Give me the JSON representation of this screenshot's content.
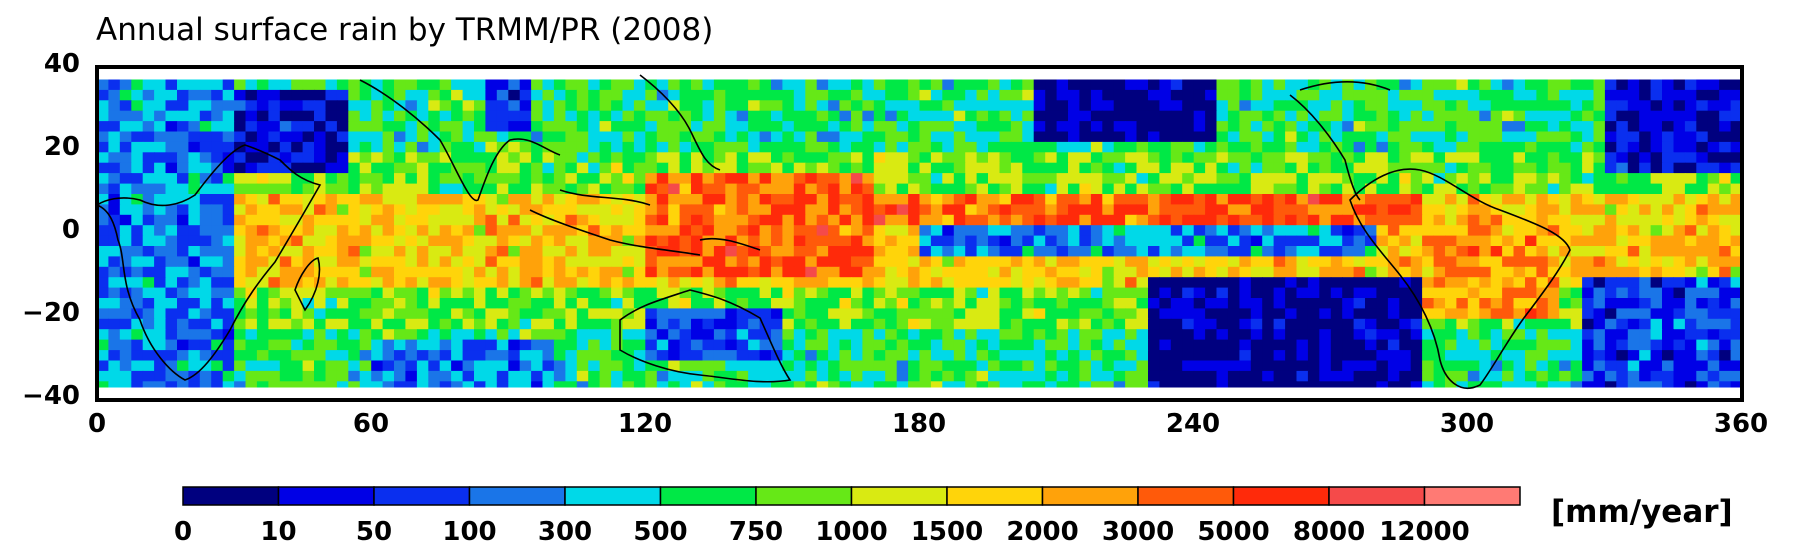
{
  "chart_data": {
    "type": "heatmap",
    "title": "Annual surface rain by TRMM/PR (2008)",
    "x_ticks": [
      "0",
      "60",
      "120",
      "180",
      "240",
      "300",
      "360"
    ],
    "x_range": [
      0,
      360
    ],
    "y_ticks": [
      "40",
      "20",
      "0",
      "−20",
      "−40"
    ],
    "y_range": [
      -40,
      40
    ],
    "data_lat_range": [
      -37,
      37
    ],
    "colorbar": {
      "unit": "[mm/year]",
      "ticks": [
        "0",
        "10",
        "50",
        "100",
        "300",
        "500",
        "750",
        "1000",
        "1500",
        "2000",
        "3000",
        "5000",
        "8000",
        "12000"
      ],
      "colors": [
        "#00007f",
        "#0000e6",
        "#0a2fef",
        "#1a75e8",
        "#00d9e8",
        "#00e846",
        "#66e817",
        "#d9ea12",
        "#ffd40a",
        "#ffa20a",
        "#ff5a0a",
        "#ff2a0a",
        "#f54a4a",
        "#ff7a74"
      ]
    },
    "bands": [
      {
        "lon": [
          0,
          28
        ],
        "lat": [
          37,
          -37
        ],
        "class": 3
      },
      {
        "lon": [
          30,
          55
        ],
        "lat": [
          35,
          15
        ],
        "class": 1
      },
      {
        "lon": [
          85,
          95
        ],
        "lat": [
          37,
          25
        ],
        "class": 1
      },
      {
        "lon": [
          120,
          170
        ],
        "lat": [
          15,
          -10
        ],
        "class": 10
      },
      {
        "lon": [
          150,
          290
        ],
        "lat": [
          10,
          4
        ],
        "class": 10
      },
      {
        "lon": [
          180,
          280
        ],
        "lat": [
          2,
          -5
        ],
        "class": 3
      },
      {
        "lon": [
          230,
          290
        ],
        "lat": [
          -10,
          -37
        ],
        "class": 0
      },
      {
        "lon": [
          205,
          245
        ],
        "lat": [
          37,
          22
        ],
        "class": 0
      },
      {
        "lon": [
          290,
          320
        ],
        "lat": [
          5,
          -20
        ],
        "class": 9
      },
      {
        "lon": [
          325,
          360
        ],
        "lat": [
          -10,
          -37
        ],
        "class": 2
      },
      {
        "lon": [
          330,
          360
        ],
        "lat": [
          37,
          15
        ],
        "class": 1
      },
      {
        "lon": [
          120,
          150
        ],
        "lat": [
          -18,
          -30
        ],
        "class": 2
      },
      {
        "lon": [
          60,
          100
        ],
        "lat": [
          -25,
          -37
        ],
        "class": 3
      }
    ]
  }
}
